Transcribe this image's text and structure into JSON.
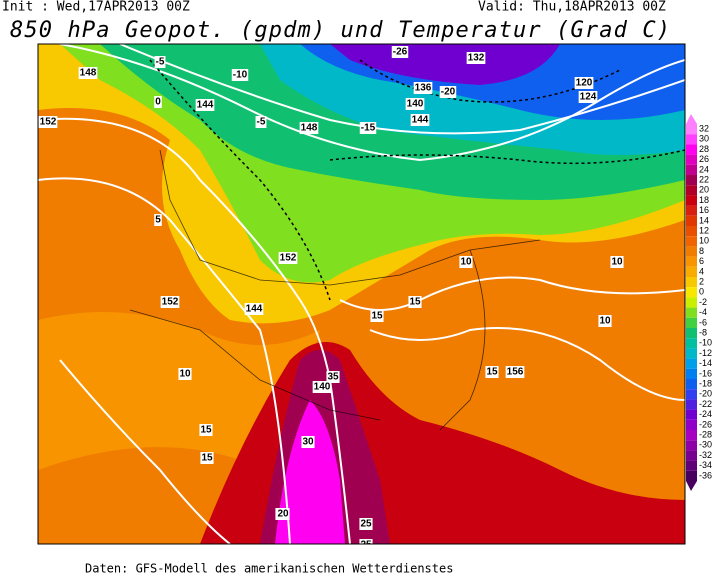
{
  "header": {
    "init": "Init : Wed,17APR2013 00Z",
    "valid": "Valid: Thu,18APR2013 00Z",
    "title": "850 hPa Geopot. (gpdm) und Temperatur (Grad C)"
  },
  "footer": "Daten: GFS-Modell des amerikanischen Wetterdienstes",
  "colorbar": {
    "levels": [
      32,
      30,
      28,
      26,
      24,
      22,
      20,
      18,
      16,
      14,
      12,
      10,
      8,
      6,
      4,
      2,
      0,
      -2,
      -4,
      -6,
      -8,
      -10,
      -12,
      -14,
      -16,
      -18,
      -20,
      -22,
      -24,
      -26,
      -28,
      -30,
      -32,
      -34,
      -36
    ],
    "colors": [
      "#ff80ff",
      "#ff40ff",
      "#ff00f0",
      "#e000c0",
      "#c00090",
      "#a00050",
      "#b00028",
      "#c80010",
      "#d82010",
      "#e03800",
      "#e85000",
      "#f06400",
      "#f07c00",
      "#f89400",
      "#f8ac00",
      "#f8c800",
      "#f8e800",
      "#c8f000",
      "#80e020",
      "#40d040",
      "#10c070",
      "#00c0a0",
      "#00b8c8",
      "#00a0e8",
      "#0080f0",
      "#1060f0",
      "#3040f0",
      "#5020e0",
      "#7000d0",
      "#9000c8",
      "#a800c0",
      "#9000a8",
      "#780090",
      "#600078",
      "#480060"
    ]
  },
  "contour_labels": [
    "148",
    "152",
    "144",
    "-5",
    "-10",
    "0",
    "-26",
    "132",
    "-20",
    "136",
    "140",
    "120",
    "124",
    "-15",
    "5",
    "10",
    "15",
    "20",
    "25",
    "30",
    "35",
    "156",
    "-5",
    "148",
    "152",
    "152",
    "144",
    "10",
    "15",
    "15",
    "15",
    "10",
    "10",
    "15",
    "20",
    "25",
    "144",
    "140"
  ]
}
